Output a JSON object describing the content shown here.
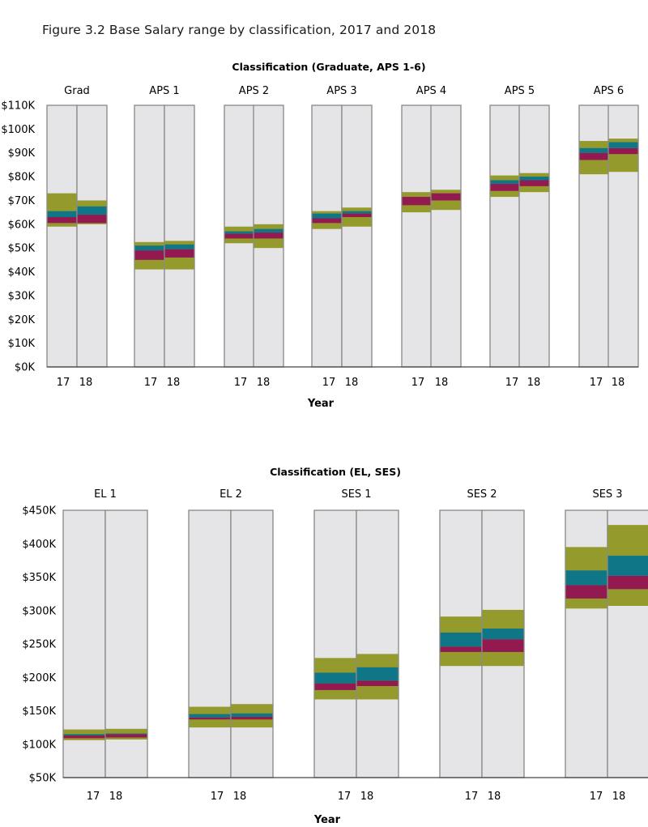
{
  "title": "Figure 3.2 Base Salary range by classification, 2017 and 2018",
  "colors": {
    "bar_bg": "#e5e5e8",
    "bar_border": "#8c8c8c",
    "range": "#949a2b",
    "teal": "#0f7688",
    "magenta": "#921a51",
    "axis": "#444444"
  },
  "chart_data": [
    {
      "type": "bar",
      "title": "Classification (Graduate, APS 1-6)",
      "xlabel": "Year",
      "ylabel": "",
      "ylim": [
        0,
        110000
      ],
      "yticks": [
        0,
        10000,
        20000,
        30000,
        40000,
        50000,
        60000,
        70000,
        80000,
        90000,
        100000,
        110000
      ],
      "ytick_labels": [
        "$0K",
        "$10K",
        "$20K",
        "$30K",
        "$40K",
        "$50K",
        "$60K",
        "$70K",
        "$80K",
        "$90K",
        "$100K",
        "$110K"
      ],
      "series_keys": [
        "min",
        "p25",
        "median",
        "mean",
        "p75",
        "max"
      ],
      "groups": [
        {
          "name": "Grad",
          "years": [
            {
              "year": "17",
              "min": 59000,
              "p25": 60500,
              "median": 63000,
              "mean": 65500,
              "p75": 65500,
              "max": 73000
            },
            {
              "year": "18",
              "min": 60000,
              "p25": 60500,
              "median": 64000,
              "mean": 67500,
              "p75": 67500,
              "max": 70000
            }
          ]
        },
        {
          "name": "APS 1",
          "years": [
            {
              "year": "17",
              "min": 41000,
              "p25": 45000,
              "median": 49000,
              "mean": 51000,
              "p75": 51000,
              "max": 52500
            },
            {
              "year": "18",
              "min": 41000,
              "p25": 46000,
              "median": 49500,
              "mean": 51500,
              "p75": 51500,
              "max": 53000
            }
          ]
        },
        {
          "name": "APS 2",
          "years": [
            {
              "year": "17",
              "min": 52000,
              "p25": 54000,
              "median": 56000,
              "mean": 57000,
              "p75": 57000,
              "max": 59000
            },
            {
              "year": "18",
              "min": 50000,
              "p25": 54000,
              "median": 56500,
              "mean": 58000,
              "p75": 58000,
              "max": 60000
            }
          ]
        },
        {
          "name": "APS 3",
          "years": [
            {
              "year": "17",
              "min": 58000,
              "p25": 60500,
              "median": 62500,
              "mean": 64500,
              "p75": 64500,
              "max": 65500
            },
            {
              "year": "18",
              "min": 59000,
              "p25": 63000,
              "median": 64500,
              "mean": 65500,
              "p75": 65500,
              "max": 67000
            }
          ]
        },
        {
          "name": "APS 4",
          "years": [
            {
              "year": "17",
              "min": 65000,
              "p25": 68000,
              "median": 71500,
              "mean": 71500,
              "p75": 71500,
              "max": 73500
            },
            {
              "year": "18",
              "min": 66000,
              "p25": 70000,
              "median": 73000,
              "mean": 73000,
              "p75": 73000,
              "max": 74500
            }
          ]
        },
        {
          "name": "APS 5",
          "years": [
            {
              "year": "17",
              "min": 71500,
              "p25": 74000,
              "median": 77000,
              "mean": 78500,
              "p75": 78500,
              "max": 80500
            },
            {
              "year": "18",
              "min": 73500,
              "p25": 76000,
              "median": 78500,
              "mean": 80000,
              "p75": 80000,
              "max": 81500
            }
          ]
        },
        {
          "name": "APS 6",
          "years": [
            {
              "year": "17",
              "min": 81000,
              "p25": 87000,
              "median": 90000,
              "mean": 92000,
              "p75": 92000,
              "max": 95000
            },
            {
              "year": "18",
              "min": 82000,
              "p25": 89500,
              "median": 92000,
              "mean": 94500,
              "p75": 94500,
              "max": 96000
            }
          ]
        }
      ]
    },
    {
      "type": "bar",
      "title": "Classification (EL, SES)",
      "xlabel": "Year",
      "ylabel": "",
      "ylim": [
        50000,
        450000
      ],
      "yticks": [
        50000,
        100000,
        150000,
        200000,
        250000,
        300000,
        350000,
        400000,
        450000
      ],
      "ytick_labels": [
        "$50K",
        "$100K",
        "$150K",
        "$200K",
        "$250K",
        "$300K",
        "$350K",
        "$400K",
        "$450K"
      ],
      "series_keys": [
        "min",
        "p25",
        "median",
        "mean",
        "p75",
        "max"
      ],
      "groups": [
        {
          "name": "EL 1",
          "years": [
            {
              "year": "17",
              "min": 106000,
              "p25": 109000,
              "median": 113000,
              "mean": 115000,
              "p75": 115000,
              "max": 122000
            },
            {
              "year": "18",
              "min": 107000,
              "p25": 110000,
              "median": 115000,
              "mean": 116000,
              "p75": 116000,
              "max": 123000
            }
          ]
        },
        {
          "name": "EL 2",
          "years": [
            {
              "year": "17",
              "min": 125000,
              "p25": 137000,
              "median": 140000,
              "mean": 145000,
              "p75": 145000,
              "max": 156000
            },
            {
              "year": "18",
              "min": 125000,
              "p25": 137000,
              "median": 141000,
              "mean": 146000,
              "p75": 146000,
              "max": 160000
            }
          ]
        },
        {
          "name": "SES 1",
          "years": [
            {
              "year": "17",
              "min": 167000,
              "p25": 181000,
              "median": 191000,
              "mean": 207000,
              "p75": 207000,
              "max": 229000
            },
            {
              "year": "18",
              "min": 167000,
              "p25": 187000,
              "median": 195000,
              "mean": 215000,
              "p75": 215000,
              "max": 235000
            }
          ]
        },
        {
          "name": "SES 2",
          "years": [
            {
              "year": "17",
              "min": 217000,
              "p25": 238000,
              "median": 246000,
              "mean": 267000,
              "p75": 267000,
              "max": 291000
            },
            {
              "year": "18",
              "min": 217000,
              "p25": 238000,
              "median": 257000,
              "mean": 273000,
              "p75": 273000,
              "max": 301000
            }
          ]
        },
        {
          "name": "SES 3",
          "years": [
            {
              "year": "17",
              "min": 303000,
              "p25": 318000,
              "median": 338000,
              "mean": 360000,
              "p75": 360000,
              "max": 395000
            },
            {
              "year": "18",
              "min": 307000,
              "p25": 332000,
              "median": 352000,
              "mean": 382000,
              "p75": 382000,
              "max": 428000
            }
          ]
        }
      ]
    }
  ]
}
